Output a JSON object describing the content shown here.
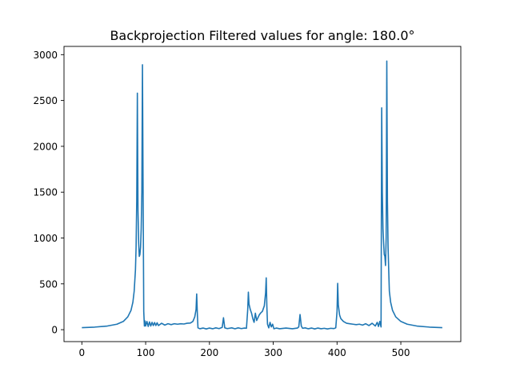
{
  "chart_data": {
    "type": "line",
    "title": "Backprojection Filtered values for angle: 180.0°",
    "xlabel": "",
    "ylabel": "",
    "xlim": [
      -28,
      594
    ],
    "ylim": [
      -130,
      3090
    ],
    "x_ticks": [
      0,
      100,
      200,
      300,
      400,
      500
    ],
    "y_ticks": [
      0,
      500,
      1000,
      1500,
      2000,
      2500,
      3000
    ],
    "grid": false,
    "legend": "none",
    "series": [
      {
        "color": "#1f77b4",
        "points": [
          [
            0,
            22
          ],
          [
            20,
            28
          ],
          [
            40,
            40
          ],
          [
            55,
            60
          ],
          [
            65,
            90
          ],
          [
            72,
            140
          ],
          [
            77,
            210
          ],
          [
            80,
            300
          ],
          [
            82,
            420
          ],
          [
            84,
            650
          ],
          [
            85,
            900
          ],
          [
            86,
            1400
          ],
          [
            87,
            2580
          ],
          [
            88,
            1300
          ],
          [
            89,
            950
          ],
          [
            90,
            800
          ],
          [
            91,
            820
          ],
          [
            92,
            900
          ],
          [
            93,
            1100
          ],
          [
            94,
            1500
          ],
          [
            95,
            2890
          ],
          [
            96,
            1500
          ],
          [
            97,
            200
          ],
          [
            98,
            40
          ],
          [
            99,
            95
          ],
          [
            100,
            40
          ],
          [
            102,
            90
          ],
          [
            104,
            35
          ],
          [
            106,
            85
          ],
          [
            108,
            40
          ],
          [
            110,
            80
          ],
          [
            112,
            45
          ],
          [
            114,
            78
          ],
          [
            116,
            45
          ],
          [
            118,
            75
          ],
          [
            120,
            45
          ],
          [
            125,
            70
          ],
          [
            130,
            50
          ],
          [
            135,
            65
          ],
          [
            140,
            55
          ],
          [
            145,
            65
          ],
          [
            150,
            60
          ],
          [
            155,
            65
          ],
          [
            160,
            62
          ],
          [
            165,
            70
          ],
          [
            170,
            72
          ],
          [
            174,
            90
          ],
          [
            177,
            140
          ],
          [
            179,
            220
          ],
          [
            180,
            390
          ],
          [
            181,
            180
          ],
          [
            182,
            20
          ],
          [
            185,
            10
          ],
          [
            190,
            18
          ],
          [
            195,
            8
          ],
          [
            200,
            18
          ],
          [
            205,
            10
          ],
          [
            210,
            20
          ],
          [
            215,
            12
          ],
          [
            220,
            25
          ],
          [
            222,
            130
          ],
          [
            224,
            20
          ],
          [
            228,
            12
          ],
          [
            235,
            20
          ],
          [
            240,
            10
          ],
          [
            245,
            20
          ],
          [
            250,
            12
          ],
          [
            255,
            18
          ],
          [
            258,
            15
          ],
          [
            260,
            220
          ],
          [
            261,
            410
          ],
          [
            262,
            280
          ],
          [
            264,
            220
          ],
          [
            266,
            180
          ],
          [
            268,
            120
          ],
          [
            270,
            80
          ],
          [
            272,
            180
          ],
          [
            274,
            100
          ],
          [
            276,
            130
          ],
          [
            278,
            160
          ],
          [
            280,
            180
          ],
          [
            283,
            200
          ],
          [
            286,
            260
          ],
          [
            288,
            400
          ],
          [
            289,
            565
          ],
          [
            290,
            250
          ],
          [
            291,
            60
          ],
          [
            293,
            20
          ],
          [
            295,
            80
          ],
          [
            297,
            30
          ],
          [
            299,
            60
          ],
          [
            301,
            10
          ],
          [
            305,
            18
          ],
          [
            310,
            10
          ],
          [
            320,
            18
          ],
          [
            330,
            10
          ],
          [
            338,
            18
          ],
          [
            340,
            30
          ],
          [
            342,
            165
          ],
          [
            344,
            40
          ],
          [
            346,
            15
          ],
          [
            350,
            20
          ],
          [
            355,
            10
          ],
          [
            360,
            18
          ],
          [
            365,
            8
          ],
          [
            370,
            18
          ],
          [
            375,
            10
          ],
          [
            380,
            15
          ],
          [
            385,
            8
          ],
          [
            390,
            15
          ],
          [
            395,
            12
          ],
          [
            398,
            20
          ],
          [
            400,
            200
          ],
          [
            401,
            505
          ],
          [
            402,
            270
          ],
          [
            404,
            160
          ],
          [
            406,
            120
          ],
          [
            410,
            90
          ],
          [
            415,
            70
          ],
          [
            420,
            65
          ],
          [
            425,
            60
          ],
          [
            430,
            55
          ],
          [
            435,
            60
          ],
          [
            440,
            50
          ],
          [
            445,
            65
          ],
          [
            450,
            45
          ],
          [
            455,
            70
          ],
          [
            460,
            40
          ],
          [
            463,
            80
          ],
          [
            465,
            35
          ],
          [
            467,
            90
          ],
          [
            469,
            30
          ],
          [
            470,
            2420
          ],
          [
            471,
            1500
          ],
          [
            472,
            1100
          ],
          [
            473,
            950
          ],
          [
            474,
            820
          ],
          [
            475,
            800
          ],
          [
            476,
            700
          ],
          [
            477,
            1000
          ],
          [
            478,
            2930
          ],
          [
            479,
            1400
          ],
          [
            480,
            900
          ],
          [
            481,
            650
          ],
          [
            482,
            420
          ],
          [
            484,
            300
          ],
          [
            487,
            210
          ],
          [
            492,
            140
          ],
          [
            500,
            90
          ],
          [
            510,
            60
          ],
          [
            525,
            40
          ],
          [
            545,
            28
          ],
          [
            565,
            22
          ]
        ]
      }
    ]
  }
}
